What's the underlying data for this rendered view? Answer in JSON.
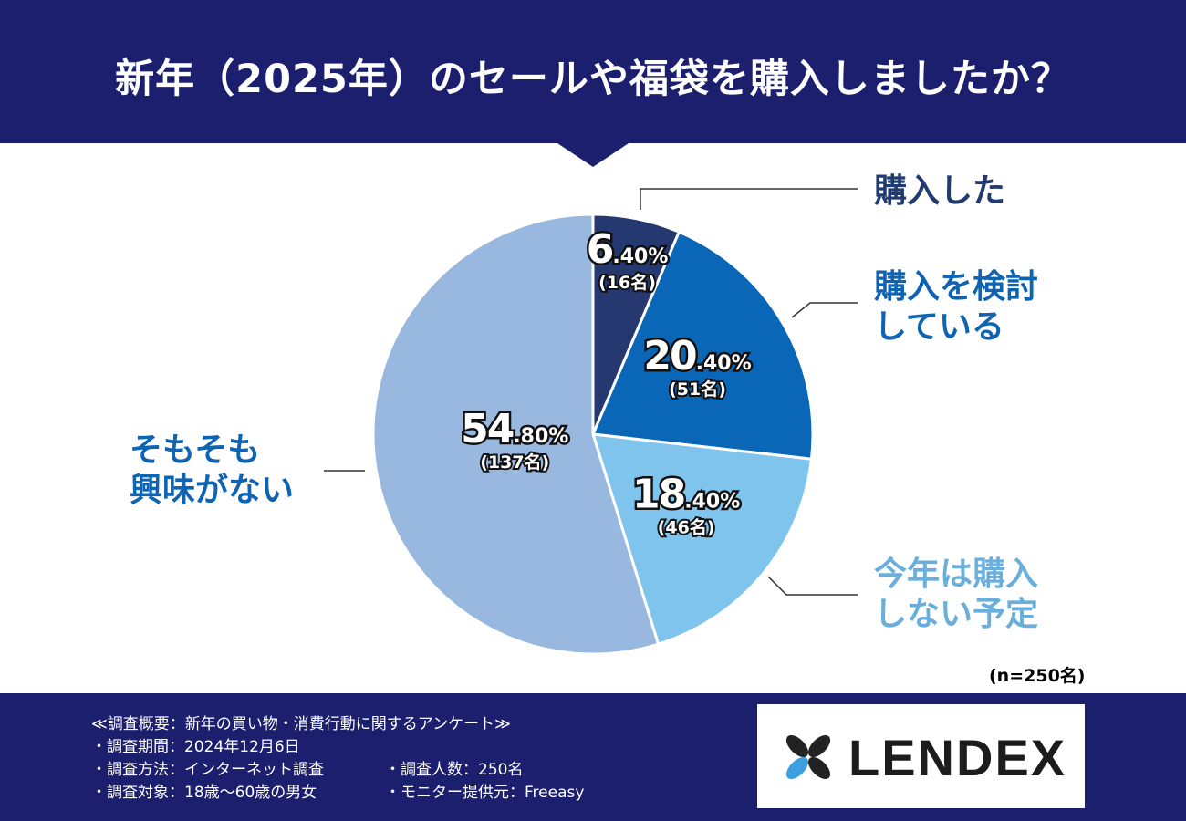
{
  "header": {
    "title": "新年（2025年）のセールや福袋を購入しましたか？"
  },
  "colors": {
    "navy": "#1b1f6e",
    "white": "#ffffff"
  },
  "chart_data": {
    "type": "pie",
    "title": "新年（2025年）のセールや福袋を購入しましたか？",
    "slices": [
      {
        "label_lines": [
          "購入した"
        ],
        "percent_big": "6",
        "percent_small": ".40%",
        "value": 6.4,
        "count_text": "(16名)",
        "color": "#25386f",
        "label_color": "#1f3b70"
      },
      {
        "label_lines": [
          "購入を検討",
          "している"
        ],
        "percent_big": "20",
        "percent_small": ".40%",
        "value": 20.4,
        "count_text": "(51名)",
        "color": "#0a67b8",
        "label_color": "#0e64b3"
      },
      {
        "label_lines": [
          "今年は購入",
          "しない予定"
        ],
        "percent_big": "18",
        "percent_small": ".40%",
        "value": 18.4,
        "count_text": "(46名)",
        "color": "#7ec4ec",
        "label_color": "#6aaedc"
      },
      {
        "label_lines": [
          "そもそも",
          "興味がない"
        ],
        "percent_big": "54",
        "percent_small": ".80%",
        "value": 54.8,
        "count_text": "(137名)",
        "color": "#98b8df",
        "label_color": "#0e64b3"
      }
    ],
    "n_label": "(n=250名)"
  },
  "footer": {
    "survey_title": "≪調査概要：新年の買い物・消費行動に関するアンケート≫",
    "period": "・調査期間：2024年12月6日",
    "method": "・調査方法：インターネット調査",
    "respondents": "・調査人数：250名",
    "target": "・調査対象：18歳～60歳の男女",
    "provider": "・モニター提供元：Freeasy",
    "logo_text": "LENDEX"
  }
}
